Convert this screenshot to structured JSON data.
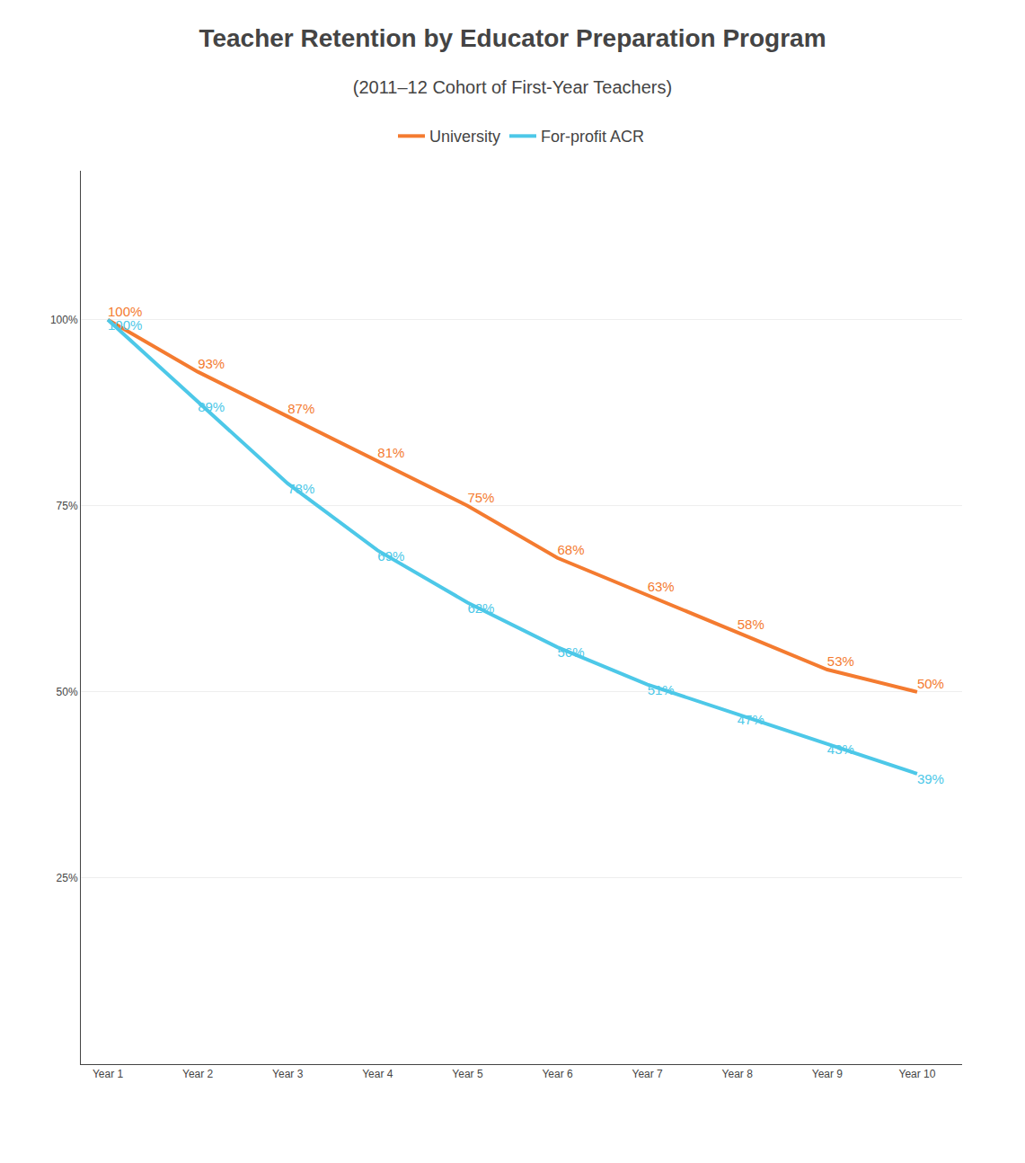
{
  "chart_data": {
    "type": "line",
    "title": "Teacher Retention by Educator Preparation Program",
    "subtitle": "(2011–12 Cohort of First-Year Teachers)",
    "categories": [
      "Year 1",
      "Year 2",
      "Year 3",
      "Year 4",
      "Year 5",
      "Year 6",
      "Year 7",
      "Year 8",
      "Year 9",
      "Year 10"
    ],
    "series": [
      {
        "name": "University",
        "color": "#F47B30",
        "values": [
          100,
          93,
          87,
          81,
          75,
          68,
          63,
          58,
          53,
          50
        ],
        "value_labels": [
          "100%",
          "93%",
          "87%",
          "81%",
          "75%",
          "68%",
          "63%",
          "58%",
          "53%",
          "50%"
        ]
      },
      {
        "name": "For-profit ACR",
        "color": "#4DC8E8",
        "values": [
          100,
          89,
          78,
          69,
          62,
          56,
          51,
          47,
          43,
          39
        ],
        "value_labels": [
          "100%",
          "89%",
          "78%",
          "69%",
          "62%",
          "56%",
          "51%",
          "47%",
          "43%",
          "39%"
        ]
      }
    ],
    "ylim": [
      0,
      120
    ],
    "yticks": [
      {
        "value": 25,
        "label": "25%"
      },
      {
        "value": 50,
        "label": "50%"
      },
      {
        "value": 75,
        "label": "75%"
      },
      {
        "value": 100,
        "label": "100%"
      }
    ],
    "grid": true,
    "data_labels": true,
    "legend": "top"
  }
}
